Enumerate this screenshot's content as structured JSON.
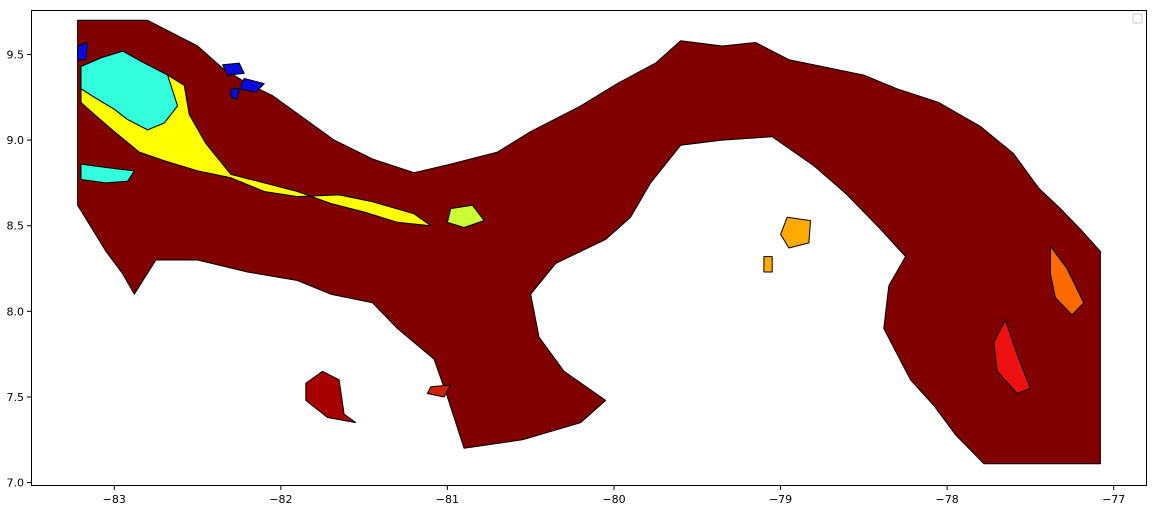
{
  "chart_data": {
    "type": "choropleth-map",
    "title": "",
    "xlabel": "",
    "ylabel": "",
    "xlim": [
      -83.5,
      -76.8
    ],
    "ylim": [
      6.98,
      9.76
    ],
    "x_ticks": [
      {
        "value": -83,
        "label": "−83"
      },
      {
        "value": -82,
        "label": "−82"
      },
      {
        "value": -81,
        "label": "−81"
      },
      {
        "value": -80,
        "label": "−80"
      },
      {
        "value": -79,
        "label": "−79"
      },
      {
        "value": -78,
        "label": "−78"
      },
      {
        "value": -77,
        "label": "−77"
      }
    ],
    "y_ticks": [
      {
        "value": 7.0,
        "label": "7.0"
      },
      {
        "value": 7.5,
        "label": "7.5"
      },
      {
        "value": 8.0,
        "label": "8.0"
      },
      {
        "value": 8.5,
        "label": "8.5"
      },
      {
        "value": 9.0,
        "label": "9.0"
      },
      {
        "value": 9.5,
        "label": "9.5"
      }
    ],
    "legend": {
      "placement": "top-right",
      "entries": []
    },
    "grid": false,
    "regions": [
      {
        "id": "mainland",
        "color": "#800000",
        "polygon": [
          [
            -83.22,
            9.7
          ],
          [
            -82.8,
            9.7
          ],
          [
            -82.5,
            9.55
          ],
          [
            -82.35,
            9.42
          ],
          [
            -82.2,
            9.33
          ],
          [
            -82.05,
            9.26
          ],
          [
            -81.85,
            9.12
          ],
          [
            -81.68,
            9.0
          ],
          [
            -81.45,
            8.89
          ],
          [
            -81.2,
            8.81
          ],
          [
            -80.98,
            8.86
          ],
          [
            -80.7,
            8.93
          ],
          [
            -80.5,
            9.05
          ],
          [
            -80.2,
            9.2
          ],
          [
            -79.98,
            9.33
          ],
          [
            -79.75,
            9.45
          ],
          [
            -79.6,
            9.58
          ],
          [
            -79.35,
            9.55
          ],
          [
            -79.15,
            9.57
          ],
          [
            -78.95,
            9.47
          ],
          [
            -78.7,
            9.42
          ],
          [
            -78.5,
            9.38
          ],
          [
            -78.3,
            9.3
          ],
          [
            -78.05,
            9.22
          ],
          [
            -77.8,
            9.08
          ],
          [
            -77.6,
            8.92
          ],
          [
            -77.45,
            8.72
          ],
          [
            -77.32,
            8.6
          ],
          [
            -77.2,
            8.48
          ],
          [
            -77.08,
            8.35
          ],
          [
            -77.08,
            7.11
          ],
          [
            -77.78,
            7.11
          ],
          [
            -77.95,
            7.28
          ],
          [
            -78.08,
            7.45
          ],
          [
            -78.22,
            7.6
          ],
          [
            -78.38,
            7.9
          ],
          [
            -78.35,
            8.15
          ],
          [
            -78.25,
            8.32
          ],
          [
            -78.4,
            8.48
          ],
          [
            -78.6,
            8.68
          ],
          [
            -78.8,
            8.85
          ],
          [
            -79.05,
            9.02
          ],
          [
            -79.35,
            9.0
          ],
          [
            -79.6,
            8.97
          ],
          [
            -79.78,
            8.75
          ],
          [
            -79.9,
            8.55
          ],
          [
            -80.05,
            8.42
          ],
          [
            -80.35,
            8.28
          ],
          [
            -80.5,
            8.1
          ],
          [
            -80.45,
            7.85
          ],
          [
            -80.3,
            7.65
          ],
          [
            -80.05,
            7.48
          ],
          [
            -80.2,
            7.35
          ],
          [
            -80.55,
            7.25
          ],
          [
            -80.9,
            7.2
          ],
          [
            -81.0,
            7.5
          ],
          [
            -81.08,
            7.72
          ],
          [
            -81.3,
            7.9
          ],
          [
            -81.45,
            8.05
          ],
          [
            -81.7,
            8.1
          ],
          [
            -81.9,
            8.18
          ],
          [
            -82.2,
            8.23
          ],
          [
            -82.5,
            8.3
          ],
          [
            -82.75,
            8.3
          ],
          [
            -82.88,
            8.1
          ],
          [
            -82.95,
            8.22
          ],
          [
            -83.05,
            8.35
          ],
          [
            -83.22,
            8.62
          ]
        ]
      },
      {
        "id": "west-cyan",
        "color": "#33ffdd",
        "polygon": [
          [
            -83.2,
            9.43
          ],
          [
            -83.08,
            9.48
          ],
          [
            -82.95,
            9.52
          ],
          [
            -82.82,
            9.45
          ],
          [
            -82.68,
            9.38
          ],
          [
            -82.62,
            9.2
          ],
          [
            -82.7,
            9.1
          ],
          [
            -82.8,
            9.06
          ],
          [
            -82.92,
            9.12
          ],
          [
            -83.0,
            9.18
          ],
          [
            -83.12,
            9.25
          ],
          [
            -83.2,
            9.3
          ]
        ]
      },
      {
        "id": "west-cyan-south",
        "color": "#33ffdd",
        "polygon": [
          [
            -83.2,
            8.86
          ],
          [
            -83.05,
            8.84
          ],
          [
            -82.88,
            8.82
          ],
          [
            -82.92,
            8.76
          ],
          [
            -83.05,
            8.75
          ],
          [
            -83.2,
            8.77
          ]
        ]
      },
      {
        "id": "west-yellow",
        "color": "#ffff00",
        "polygon": [
          [
            -83.2,
            9.3
          ],
          [
            -83.12,
            9.25
          ],
          [
            -83.0,
            9.18
          ],
          [
            -82.92,
            9.12
          ],
          [
            -82.8,
            9.06
          ],
          [
            -82.7,
            9.1
          ],
          [
            -82.62,
            9.2
          ],
          [
            -82.68,
            9.38
          ],
          [
            -82.58,
            9.32
          ],
          [
            -82.55,
            9.15
          ],
          [
            -82.45,
            8.98
          ],
          [
            -82.3,
            8.8
          ],
          [
            -82.1,
            8.75
          ],
          [
            -81.9,
            8.7
          ],
          [
            -81.7,
            8.63
          ],
          [
            -81.5,
            8.58
          ],
          [
            -81.3,
            8.52
          ],
          [
            -81.1,
            8.5
          ],
          [
            -81.2,
            8.57
          ],
          [
            -81.45,
            8.64
          ],
          [
            -81.65,
            8.68
          ],
          [
            -81.9,
            8.67
          ],
          [
            -82.1,
            8.7
          ],
          [
            -82.3,
            8.78
          ],
          [
            -82.5,
            8.82
          ],
          [
            -82.7,
            8.88
          ],
          [
            -82.85,
            8.93
          ],
          [
            -83.0,
            9.05
          ],
          [
            -83.12,
            9.15
          ],
          [
            -83.2,
            9.22
          ]
        ]
      },
      {
        "id": "central-lime",
        "color": "#ccff33",
        "polygon": [
          [
            -80.98,
            8.6
          ],
          [
            -80.85,
            8.62
          ],
          [
            -80.78,
            8.53
          ],
          [
            -80.9,
            8.49
          ],
          [
            -81.0,
            8.52
          ]
        ]
      },
      {
        "id": "north-blue-1",
        "color": "#0a0add",
        "polygon": [
          [
            -82.35,
            9.44
          ],
          [
            -82.25,
            9.45
          ],
          [
            -82.22,
            9.39
          ],
          [
            -82.32,
            9.38
          ]
        ]
      },
      {
        "id": "north-blue-2",
        "color": "#0a0add",
        "polygon": [
          [
            -82.22,
            9.36
          ],
          [
            -82.1,
            9.33
          ],
          [
            -82.15,
            9.28
          ],
          [
            -82.25,
            9.3
          ]
        ]
      },
      {
        "id": "north-blue-3",
        "color": "#0a0add",
        "polygon": [
          [
            -82.3,
            9.3
          ],
          [
            -82.25,
            9.3
          ],
          [
            -82.26,
            9.24
          ],
          [
            -82.3,
            9.25
          ]
        ]
      },
      {
        "id": "nw-blue",
        "color": "#0a0add",
        "polygon": [
          [
            -83.22,
            9.55
          ],
          [
            -83.16,
            9.57
          ],
          [
            -83.17,
            9.47
          ],
          [
            -83.22,
            9.47
          ]
        ]
      },
      {
        "id": "pearl-orange-1",
        "color": "#ffaa00",
        "polygon": [
          [
            -78.96,
            8.55
          ],
          [
            -78.82,
            8.53
          ],
          [
            -78.83,
            8.4
          ],
          [
            -78.95,
            8.37
          ],
          [
            -79.0,
            8.45
          ]
        ]
      },
      {
        "id": "pearl-orange-2",
        "color": "#ffaa00",
        "polygon": [
          [
            -79.1,
            8.32
          ],
          [
            -79.05,
            8.32
          ],
          [
            -79.05,
            8.23
          ],
          [
            -79.1,
            8.23
          ]
        ]
      },
      {
        "id": "east-orange",
        "color": "#ff6a00",
        "polygon": [
          [
            -77.38,
            8.38
          ],
          [
            -77.28,
            8.25
          ],
          [
            -77.18,
            8.05
          ],
          [
            -77.25,
            7.98
          ],
          [
            -77.35,
            8.08
          ],
          [
            -77.38,
            8.22
          ]
        ]
      },
      {
        "id": "east-red",
        "color": "#ee1111",
        "polygon": [
          [
            -77.65,
            7.95
          ],
          [
            -77.58,
            7.75
          ],
          [
            -77.5,
            7.55
          ],
          [
            -77.58,
            7.52
          ],
          [
            -77.7,
            7.65
          ],
          [
            -77.72,
            7.82
          ]
        ]
      },
      {
        "id": "coiba-darkred",
        "color": "#a80000",
        "polygon": [
          [
            -81.75,
            7.65
          ],
          [
            -81.65,
            7.6
          ],
          [
            -81.62,
            7.4
          ],
          [
            -81.55,
            7.35
          ],
          [
            -81.72,
            7.38
          ],
          [
            -81.85,
            7.48
          ],
          [
            -81.85,
            7.58
          ]
        ]
      },
      {
        "id": "gulf-red-islet",
        "color": "#cc2200",
        "polygon": [
          [
            -81.1,
            7.56
          ],
          [
            -80.98,
            7.57
          ],
          [
            -81.02,
            7.5
          ],
          [
            -81.12,
            7.52
          ]
        ]
      }
    ]
  }
}
